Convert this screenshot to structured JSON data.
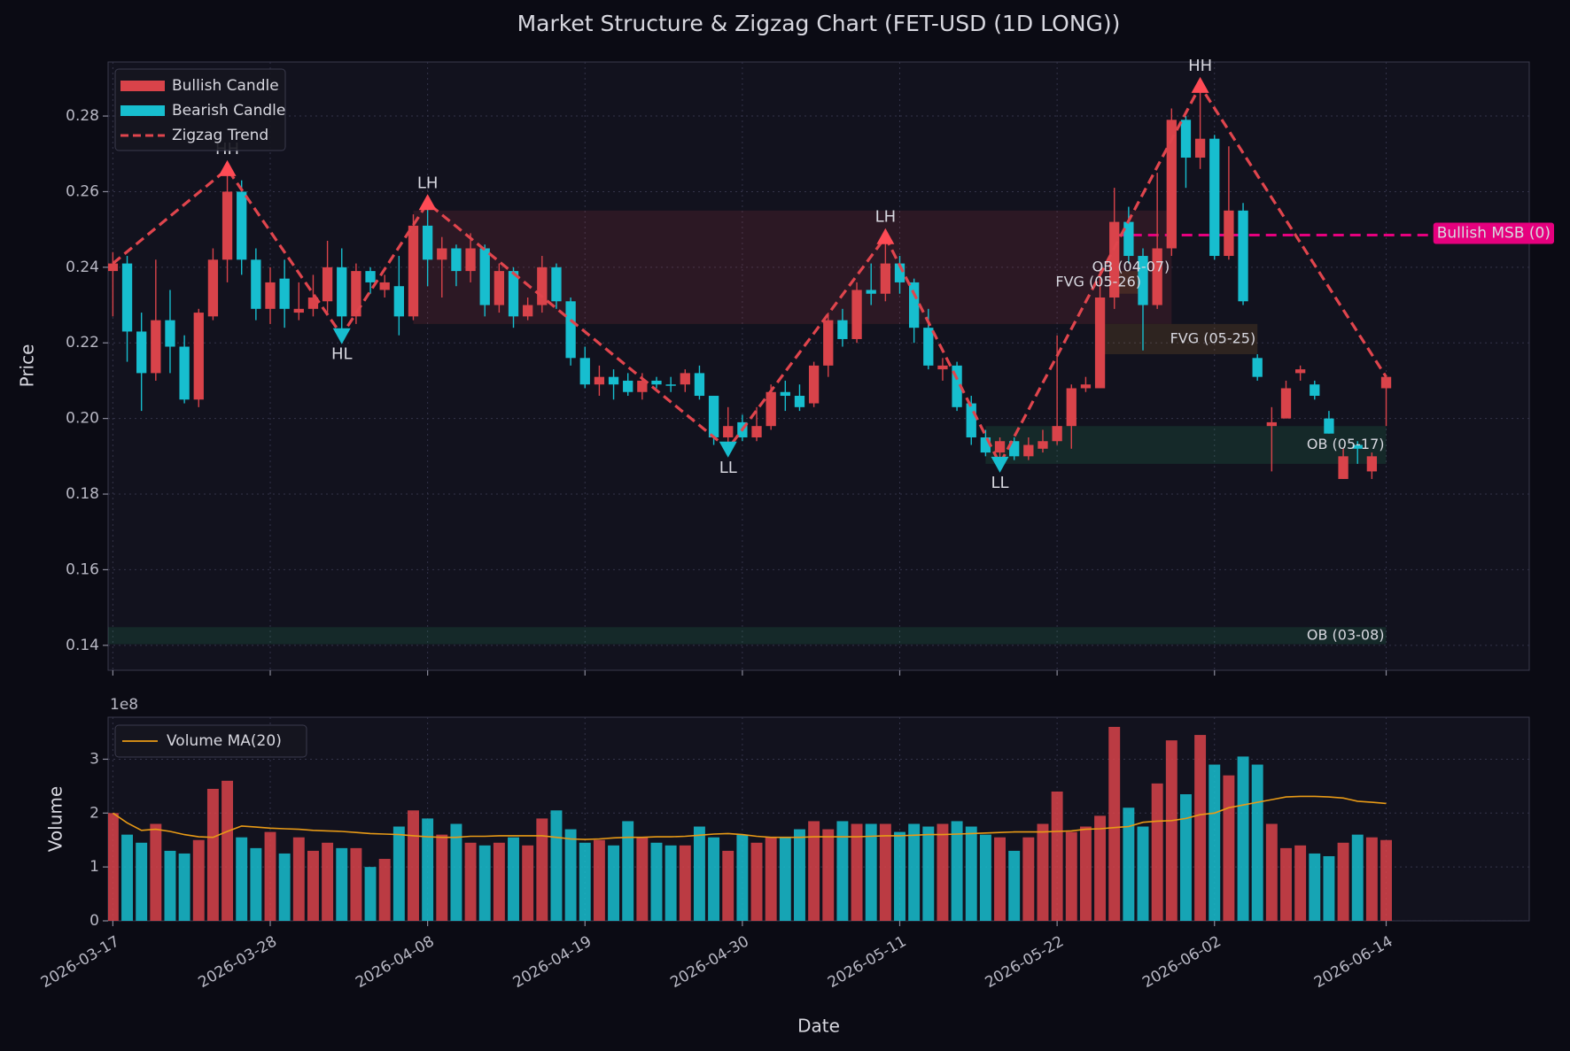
{
  "chart_data": [
    {
      "type": "candlestick",
      "title": "Market Structure & Zigzag Chart (FET-USD (1D LONG))",
      "ylabel": "Price",
      "x": [
        "2026-03-17",
        "2026-03-18",
        "2026-03-19",
        "2026-03-20",
        "2026-03-21",
        "2026-03-22",
        "2026-03-23",
        "2026-03-24",
        "2026-03-25",
        "2026-03-26",
        "2026-03-27",
        "2026-03-28",
        "2026-03-29",
        "2026-03-30",
        "2026-03-31",
        "2026-04-01",
        "2026-04-02",
        "2026-04-03",
        "2026-04-04",
        "2026-04-05",
        "2026-04-06",
        "2026-04-07",
        "2026-04-08",
        "2026-04-09",
        "2026-04-10",
        "2026-04-11",
        "2026-04-12",
        "2026-04-13",
        "2026-04-14",
        "2026-04-15",
        "2026-04-16",
        "2026-04-17",
        "2026-04-18",
        "2026-04-19",
        "2026-04-20",
        "2026-04-21",
        "2026-04-22",
        "2026-04-23",
        "2026-04-24",
        "2026-04-25",
        "2026-04-26",
        "2026-04-27",
        "2026-04-28",
        "2026-04-29",
        "2026-04-30",
        "2026-05-01",
        "2026-05-02",
        "2026-05-03",
        "2026-05-04",
        "2026-05-05",
        "2026-05-06",
        "2026-05-07",
        "2026-05-08",
        "2026-05-09",
        "2026-05-10",
        "2026-05-11",
        "2026-05-12",
        "2026-05-13",
        "2026-05-14",
        "2026-05-15",
        "2026-05-16",
        "2026-05-17",
        "2026-05-18",
        "2026-05-19",
        "2026-05-20",
        "2026-05-21",
        "2026-05-22",
        "2026-05-23",
        "2026-05-24",
        "2026-05-25",
        "2026-05-26",
        "2026-05-27",
        "2026-05-28",
        "2026-05-29",
        "2026-05-30",
        "2026-05-31",
        "2026-06-01",
        "2026-06-02",
        "2026-06-03",
        "2026-06-04",
        "2026-06-05",
        "2026-06-06",
        "2026-06-07",
        "2026-06-08",
        "2026-06-09",
        "2026-06-10",
        "2026-06-11",
        "2026-06-12",
        "2026-06-13",
        "2026-06-14"
      ],
      "open": [
        0.239,
        0.241,
        0.223,
        0.212,
        0.226,
        0.219,
        0.205,
        0.227,
        0.242,
        0.26,
        0.242,
        0.229,
        0.237,
        0.228,
        0.229,
        0.231,
        0.24,
        0.227,
        0.239,
        0.234,
        0.235,
        0.227,
        0.251,
        0.242,
        0.245,
        0.239,
        0.245,
        0.23,
        0.239,
        0.227,
        0.23,
        0.24,
        0.231,
        0.216,
        0.209,
        0.211,
        0.21,
        0.207,
        0.21,
        0.209,
        0.209,
        0.212,
        0.206,
        0.195,
        0.199,
        0.195,
        0.198,
        0.207,
        0.206,
        0.204,
        0.214,
        0.226,
        0.221,
        0.234,
        0.233,
        0.241,
        0.236,
        0.224,
        0.213,
        0.214,
        0.204,
        0.195,
        0.191,
        0.194,
        0.19,
        0.192,
        0.194,
        0.198,
        0.208,
        0.208,
        0.232,
        0.252,
        0.243,
        0.23,
        0.245,
        0.279,
        0.269,
        0.274,
        0.243,
        0.255,
        0.216,
        0.198,
        0.2,
        0.212,
        0.209,
        0.2,
        0.184,
        0.193,
        0.186,
        0.208
      ],
      "high": [
        0.244,
        0.243,
        0.228,
        0.242,
        0.234,
        0.222,
        0.229,
        0.245,
        0.266,
        0.263,
        0.245,
        0.24,
        0.242,
        0.236,
        0.238,
        0.247,
        0.245,
        0.241,
        0.24,
        0.238,
        0.243,
        0.254,
        0.257,
        0.248,
        0.246,
        0.249,
        0.246,
        0.241,
        0.24,
        0.232,
        0.243,
        0.241,
        0.232,
        0.219,
        0.214,
        0.213,
        0.212,
        0.212,
        0.211,
        0.211,
        0.213,
        0.214,
        0.206,
        0.203,
        0.201,
        0.203,
        0.209,
        0.21,
        0.209,
        0.215,
        0.228,
        0.229,
        0.236,
        0.241,
        0.248,
        0.243,
        0.237,
        0.229,
        0.216,
        0.215,
        0.206,
        0.197,
        0.195,
        0.195,
        0.195,
        0.197,
        0.222,
        0.209,
        0.211,
        0.239,
        0.261,
        0.256,
        0.245,
        0.265,
        0.282,
        0.28,
        0.288,
        0.275,
        0.272,
        0.257,
        0.217,
        0.203,
        0.21,
        0.214,
        0.21,
        0.202,
        0.192,
        0.194,
        0.191,
        0.211
      ],
      "low": [
        0.227,
        0.215,
        0.202,
        0.21,
        0.212,
        0.204,
        0.203,
        0.226,
        0.236,
        0.238,
        0.226,
        0.225,
        0.224,
        0.226,
        0.227,
        0.228,
        0.222,
        0.225,
        0.233,
        0.232,
        0.222,
        0.226,
        0.235,
        0.232,
        0.235,
        0.236,
        0.227,
        0.228,
        0.224,
        0.226,
        0.228,
        0.229,
        0.214,
        0.208,
        0.206,
        0.205,
        0.206,
        0.205,
        0.208,
        0.207,
        0.207,
        0.205,
        0.193,
        0.192,
        0.194,
        0.194,
        0.197,
        0.202,
        0.202,
        0.203,
        0.211,
        0.219,
        0.22,
        0.23,
        0.231,
        0.233,
        0.22,
        0.213,
        0.21,
        0.202,
        0.193,
        0.19,
        0.188,
        0.189,
        0.189,
        0.191,
        0.193,
        0.192,
        0.207,
        0.208,
        0.229,
        0.241,
        0.218,
        0.229,
        0.243,
        0.261,
        0.266,
        0.242,
        0.242,
        0.23,
        0.21,
        0.186,
        0.2,
        0.21,
        0.205,
        0.196,
        0.184,
        0.188,
        0.184,
        0.198
      ],
      "close": [
        0.241,
        0.223,
        0.212,
        0.226,
        0.219,
        0.205,
        0.228,
        0.242,
        0.26,
        0.242,
        0.229,
        0.236,
        0.229,
        0.229,
        0.232,
        0.24,
        0.227,
        0.239,
        0.236,
        0.236,
        0.227,
        0.251,
        0.242,
        0.245,
        0.239,
        0.245,
        0.23,
        0.239,
        0.227,
        0.23,
        0.24,
        0.231,
        0.216,
        0.209,
        0.211,
        0.209,
        0.207,
        0.21,
        0.209,
        0.209,
        0.212,
        0.206,
        0.195,
        0.198,
        0.195,
        0.198,
        0.207,
        0.206,
        0.203,
        0.214,
        0.226,
        0.221,
        0.234,
        0.233,
        0.241,
        0.236,
        0.224,
        0.214,
        0.214,
        0.203,
        0.195,
        0.191,
        0.194,
        0.19,
        0.193,
        0.194,
        0.198,
        0.208,
        0.209,
        0.232,
        0.252,
        0.243,
        0.23,
        0.245,
        0.279,
        0.269,
        0.274,
        0.243,
        0.255,
        0.231,
        0.211,
        0.199,
        0.208,
        0.213,
        0.206,
        0.196,
        0.19,
        0.192,
        0.19,
        0.211
      ],
      "xlim": [
        "2026-03-16T16:00",
        "2026-06-24T00:00"
      ],
      "ylim": [
        0.1334,
        0.2943
      ],
      "yticks": [
        0.14,
        0.16,
        0.18,
        {
          "value": 0.2,
          "label": "0.20"
        },
        0.22,
        0.24,
        0.26,
        0.28
      ],
      "grid": true,
      "legend": "upper left",
      "series": [
        {
          "name": "Bullish Candle",
          "color": "#d9434a"
        },
        {
          "name": "Bearish Candle",
          "color": "#17becf"
        }
      ],
      "zigzag": {
        "name": "Zigzag Trend",
        "color": "#e0454d",
        "x": [
          "2026-03-17",
          "2026-03-25",
          "2026-04-02",
          "2026-04-08",
          "2026-04-29",
          "2026-05-10",
          "2026-05-18",
          "2026-06-01",
          "2026-06-14"
        ],
        "values": [
          0.241,
          0.266,
          0.222,
          0.257,
          0.192,
          0.248,
          0.188,
          0.288,
          0.211
        ]
      },
      "pivots": [
        {
          "x": "2026-03-25",
          "value": 0.266,
          "label": "HH"
        },
        {
          "x": "2026-04-02",
          "value": 0.222,
          "label": "HL"
        },
        {
          "x": "2026-04-08",
          "value": 0.257,
          "label": "LH"
        },
        {
          "x": "2026-04-29",
          "value": 0.192,
          "label": "LL"
        },
        {
          "x": "2026-05-10",
          "value": 0.248,
          "label": "LH"
        },
        {
          "x": "2026-05-18",
          "value": 0.188,
          "label": "LL"
        },
        {
          "x": "2026-06-01",
          "value": 0.288,
          "label": "HH"
        }
      ],
      "pivot_colors": {
        "high": "#ff4b55",
        "low": "#17becf"
      },
      "zones": [
        {
          "label": "OB (03-08)",
          "start": "2026-03-08",
          "end": "2026-06-14",
          "low": 0.1403,
          "high": 0.1448,
          "color": "#2ecc71"
        },
        {
          "label": "OB (04-07)",
          "start": "2026-04-07",
          "end": "2026-05-30",
          "low": 0.225,
          "high": 0.255,
          "color": "#e0464e"
        },
        {
          "label": "OB (05-17)",
          "start": "2026-05-17",
          "end": "2026-06-14",
          "low": 0.188,
          "high": 0.198,
          "color": "#2ecc71"
        },
        {
          "label": "FVG (05-25)",
          "start": "2026-05-25",
          "end": "2026-06-05",
          "low": 0.217,
          "high": 0.225,
          "color": "#f0a030"
        },
        {
          "label": "FVG (05-26)",
          "start": "2026-05-26",
          "end": "2026-05-28",
          "low": 0.233,
          "high": 0.239,
          "color": "#f0a030"
        }
      ],
      "msb": {
        "label": "Bullish MSB (0)",
        "start": "2026-05-26",
        "level": 0.2485,
        "color": "#e6007e"
      }
    },
    {
      "type": "bar",
      "xlabel": "Date",
      "ylabel": "Volume",
      "offset_label": "1e8",
      "values": [
        2.0,
        1.6,
        1.45,
        1.8,
        1.3,
        1.25,
        1.5,
        2.45,
        2.6,
        1.55,
        1.35,
        1.65,
        1.25,
        1.55,
        1.3,
        1.45,
        1.35,
        1.35,
        1.0,
        1.15,
        1.75,
        2.05,
        1.9,
        1.6,
        1.8,
        1.45,
        1.4,
        1.45,
        1.55,
        1.4,
        1.9,
        2.05,
        1.7,
        1.45,
        1.5,
        1.4,
        1.85,
        1.55,
        1.45,
        1.4,
        1.4,
        1.75,
        1.55,
        1.3,
        1.6,
        1.45,
        1.55,
        1.55,
        1.7,
        1.85,
        1.7,
        1.85,
        1.8,
        1.8,
        1.8,
        1.65,
        1.8,
        1.75,
        1.8,
        1.85,
        1.75,
        1.6,
        1.55,
        1.3,
        1.55,
        1.8,
        2.4,
        1.65,
        1.75,
        1.95,
        3.6,
        2.1,
        1.75,
        2.55,
        3.35,
        2.35,
        3.45,
        2.9,
        2.7,
        3.05,
        2.9,
        1.8,
        1.35,
        1.4,
        1.25,
        1.2,
        1.45,
        1.6,
        1.55,
        1.5
      ],
      "series": [
        {
          "name": "Volume MA(20)",
          "color": "#e89a16",
          "values": [
            2.0,
            1.82,
            1.68,
            1.7,
            1.66,
            1.6,
            1.56,
            1.55,
            1.66,
            1.76,
            1.74,
            1.72,
            1.71,
            1.7,
            1.68,
            1.67,
            1.66,
            1.64,
            1.62,
            1.61,
            1.6,
            1.58,
            1.56,
            1.55,
            1.55,
            1.57,
            1.57,
            1.58,
            1.58,
            1.58,
            1.58,
            1.55,
            1.52,
            1.51,
            1.52,
            1.54,
            1.55,
            1.55,
            1.56,
            1.56,
            1.57,
            1.59,
            1.61,
            1.62,
            1.6,
            1.57,
            1.55,
            1.55,
            1.55,
            1.56,
            1.56,
            1.56,
            1.56,
            1.57,
            1.58,
            1.58,
            1.59,
            1.6,
            1.6,
            1.61,
            1.62,
            1.63,
            1.64,
            1.65,
            1.65,
            1.65,
            1.66,
            1.67,
            1.7,
            1.71,
            1.73,
            1.75,
            1.83,
            1.85,
            1.86,
            1.9,
            1.97,
            2.0,
            2.1,
            2.15,
            2.2,
            2.25,
            2.3,
            2.31,
            2.31,
            2.3,
            2.28,
            2.22,
            2.2,
            2.18
          ]
        }
      ],
      "xlim": [
        "2026-03-16T16:00",
        "2026-06-24T00:00"
      ],
      "xticks": [
        "2026-03-17",
        "2026-03-28",
        "2026-04-08",
        "2026-04-19",
        "2026-04-30",
        "2026-05-11",
        "2026-05-22",
        "2026-06-02",
        "2026-06-14"
      ],
      "ylim": [
        0,
        3.78
      ],
      "yticks": [
        0,
        1,
        2,
        3
      ],
      "grid": true,
      "legend": "upper left"
    }
  ]
}
